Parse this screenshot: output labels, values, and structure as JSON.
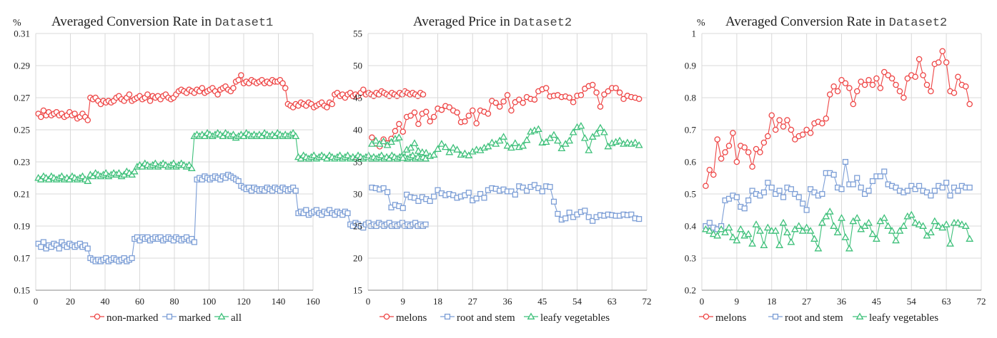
{
  "colors": {
    "red": "#ee4545",
    "blue": "#7c9ed6",
    "green": "#3ec07a"
  },
  "chart_data": [
    {
      "type": "line",
      "title_text": "Averaged Conversion Rate in ",
      "title_code": "Dataset1",
      "unit_label": "%",
      "xlim": [
        0,
        160
      ],
      "xticks": [
        "0",
        "20",
        "40",
        "60",
        "80",
        "100",
        "120",
        "140",
        "160"
      ],
      "ylim": [
        0.15,
        0.31
      ],
      "yticks": [
        "0.31",
        "0.29",
        "0.27",
        "0.25",
        "0.23",
        "0.21",
        "0.19",
        "0.17",
        "0.15"
      ],
      "grid": true,
      "legend_position": "bottom",
      "x_step": 1.5,
      "series": [
        {
          "name": "non-marked",
          "color": "red",
          "marker": "circle",
          "values": [
            0.26,
            0.258,
            0.262,
            0.259,
            0.261,
            0.259,
            0.26,
            0.261,
            0.259,
            0.26,
            0.258,
            0.259,
            0.261,
            0.259,
            0.26,
            0.257,
            0.258,
            0.26,
            0.258,
            0.256,
            0.27,
            0.269,
            0.27,
            0.268,
            0.266,
            0.268,
            0.267,
            0.268,
            0.267,
            0.268,
            0.27,
            0.271,
            0.269,
            0.268,
            0.27,
            0.272,
            0.268,
            0.269,
            0.27,
            0.271,
            0.269,
            0.27,
            0.272,
            0.268,
            0.271,
            0.27,
            0.271,
            0.269,
            0.271,
            0.272,
            0.27,
            0.269,
            0.27,
            0.272,
            0.274,
            0.275,
            0.274,
            0.273,
            0.275,
            0.274,
            0.273,
            0.275,
            0.274,
            0.276,
            0.273,
            0.274,
            0.275,
            0.276,
            0.274,
            0.272,
            0.275,
            0.276,
            0.277,
            0.275,
            0.274,
            0.276,
            0.28,
            0.281,
            0.284,
            0.279,
            0.28,
            0.279,
            0.281,
            0.28,
            0.279,
            0.28,
            0.281,
            0.279,
            0.28,
            0.279,
            0.281,
            0.28,
            0.28,
            0.281,
            0.279,
            0.276,
            0.266,
            0.265,
            0.264,
            0.266,
            0.265,
            0.267,
            0.266,
            0.265,
            0.267,
            0.266,
            0.264,
            0.265,
            0.266,
            0.267,
            0.265,
            0.264,
            0.267,
            0.266,
            0.272,
            0.273,
            0.271,
            0.272,
            0.27,
            0.272,
            0.273,
            0.271,
            0.272,
            0.271,
            0.273,
            0.275,
            0.272,
            0.273,
            0.272,
            0.271,
            0.273,
            0.272,
            0.274,
            0.273,
            0.272,
            0.271,
            0.273,
            0.272,
            0.271,
            0.273,
            0.272,
            0.274,
            0.273,
            0.272,
            0.273,
            0.272,
            0.271,
            0.273,
            0.272
          ]
        },
        {
          "name": "marked",
          "color": "blue",
          "marker": "square",
          "values": [
            0.179,
            0.177,
            0.18,
            0.176,
            0.178,
            0.177,
            0.179,
            0.178,
            0.176,
            0.18,
            0.178,
            0.177,
            0.179,
            0.178,
            0.177,
            0.178,
            0.179,
            0.177,
            0.178,
            0.176,
            0.17,
            0.169,
            0.168,
            0.169,
            0.168,
            0.169,
            0.17,
            0.168,
            0.169,
            0.17,
            0.169,
            0.168,
            0.169,
            0.17,
            0.168,
            0.169,
            0.17,
            0.182,
            0.183,
            0.181,
            0.183,
            0.182,
            0.183,
            0.181,
            0.182,
            0.183,
            0.182,
            0.183,
            0.181,
            0.182,
            0.183,
            0.182,
            0.181,
            0.183,
            0.182,
            0.181,
            0.182,
            0.183,
            0.181,
            0.182,
            0.18,
            0.219,
            0.22,
            0.219,
            0.221,
            0.22,
            0.219,
            0.22,
            0.221,
            0.22,
            0.219,
            0.221,
            0.22,
            0.222,
            0.221,
            0.22,
            0.219,
            0.218,
            0.215,
            0.214,
            0.213,
            0.214,
            0.212,
            0.214,
            0.213,
            0.212,
            0.213,
            0.212,
            0.214,
            0.213,
            0.212,
            0.214,
            0.213,
            0.212,
            0.214,
            0.213,
            0.212,
            0.213,
            0.214,
            0.212,
            0.198,
            0.199,
            0.198,
            0.2,
            0.197,
            0.198,
            0.199,
            0.2,
            0.198,
            0.197,
            0.199,
            0.198,
            0.2,
            0.198,
            0.197,
            0.199,
            0.198,
            0.197,
            0.199,
            0.198,
            0.191,
            0.19,
            0.192,
            0.191,
            0.19,
            0.189,
            0.191,
            0.192,
            0.19,
            0.191,
            0.19,
            0.192,
            0.191,
            0.19,
            0.191,
            0.192,
            0.19,
            0.191,
            0.19,
            0.191,
            0.192,
            0.19,
            0.191,
            0.19,
            0.191,
            0.192,
            0.19,
            0.191,
            0.19,
            0.191
          ]
        },
        {
          "name": "all",
          "color": "green",
          "marker": "triangle",
          "values": [
            0.22,
            0.219,
            0.221,
            0.22,
            0.219,
            0.221,
            0.22,
            0.219,
            0.22,
            0.221,
            0.219,
            0.22,
            0.219,
            0.221,
            0.22,
            0.219,
            0.22,
            0.221,
            0.219,
            0.218,
            0.222,
            0.221,
            0.223,
            0.222,
            0.221,
            0.222,
            0.223,
            0.221,
            0.222,
            0.223,
            0.222,
            0.223,
            0.221,
            0.222,
            0.224,
            0.223,
            0.222,
            0.224,
            0.227,
            0.228,
            0.227,
            0.229,
            0.228,
            0.227,
            0.228,
            0.229,
            0.227,
            0.228,
            0.229,
            0.228,
            0.227,
            0.228,
            0.229,
            0.227,
            0.228,
            0.229,
            0.228,
            0.227,
            0.228,
            0.226,
            0.246,
            0.247,
            0.246,
            0.247,
            0.246,
            0.248,
            0.247,
            0.246,
            0.247,
            0.248,
            0.247,
            0.246,
            0.248,
            0.247,
            0.246,
            0.247,
            0.245,
            0.246,
            0.247,
            0.246,
            0.248,
            0.247,
            0.246,
            0.247,
            0.246,
            0.247,
            0.246,
            0.248,
            0.247,
            0.246,
            0.247,
            0.246,
            0.248,
            0.247,
            0.246,
            0.247,
            0.246,
            0.247,
            0.248,
            0.246,
            0.233,
            0.232,
            0.234,
            0.233,
            0.232,
            0.233,
            0.234,
            0.232,
            0.233,
            0.234,
            0.233,
            0.232,
            0.234,
            0.233,
            0.232,
            0.233,
            0.234,
            0.232,
            0.233,
            0.234,
            0.232,
            0.233,
            0.232,
            0.234,
            0.233,
            0.232,
            0.233,
            0.234,
            0.232,
            0.233,
            0.232,
            0.233,
            0.234,
            0.232,
            0.233,
            0.232,
            0.234,
            0.233,
            0.232,
            0.233,
            0.234,
            0.233,
            0.232,
            0.233,
            0.234,
            0.232,
            0.233,
            0.232,
            0.233,
            0.232
          ]
        }
      ]
    },
    {
      "type": "line",
      "title_text": "Averaged Price in ",
      "title_code": "Dataset2",
      "unit_label": "",
      "xlim": [
        0,
        72
      ],
      "xticks": [
        "0",
        "9",
        "18",
        "27",
        "36",
        "45",
        "54",
        "63",
        "72"
      ],
      "ylim": [
        15,
        55
      ],
      "yticks": [
        "55",
        "50",
        "45",
        "40",
        "35",
        "30",
        "25",
        "20",
        "15"
      ],
      "grid": true,
      "legend_position": "bottom",
      "x_step": 1,
      "series": [
        {
          "name": "melons",
          "color": "red",
          "marker": "circle",
          "values": [
            38.8,
            37.9,
            37.4,
            38.5,
            37.9,
            38.6,
            39.8,
            40.9,
            39.7,
            42.0,
            42.2,
            42.7,
            40.9,
            42.5,
            42.8,
            41.3,
            42.0,
            43.3,
            43.1,
            43.7,
            43.5,
            43.0,
            42.7,
            41.2,
            41.3,
            42.2,
            43.0,
            41.0,
            43.0,
            42.8,
            42.5,
            44.5,
            44.2,
            43.6,
            44.4,
            45.4,
            43.0,
            44.3,
            44.7,
            44.2,
            45.1,
            44.8,
            44.7,
            46.0,
            46.3,
            46.5,
            45.2,
            45.3,
            45.4,
            45.1,
            45.2,
            45.0,
            44.3,
            45.3,
            45.4,
            46.4,
            46.8,
            47.0,
            45.8,
            43.6,
            45.5,
            46.0,
            46.5,
            46.5,
            45.8,
            44.8,
            45.3,
            45.1,
            45.0,
            44.8
          ]
        },
        {
          "name": "root and stem",
          "color": "blue",
          "marker": "square",
          "values": [
            31.0,
            30.9,
            30.7,
            30.9,
            30.3,
            27.9,
            28.3,
            28.1,
            27.8,
            29.9,
            29.5,
            29.4,
            28.9,
            29.5,
            29.2,
            28.9,
            29.6,
            30.6,
            30.1,
            29.8,
            30.0,
            29.8,
            29.4,
            29.6,
            29.8,
            30.2,
            29.0,
            29.3,
            30.0,
            29.4,
            30.6,
            30.9,
            30.8,
            30.5,
            30.7,
            30.4,
            30.4,
            29.9,
            31.2,
            31.0,
            30.5,
            31.1,
            31.4,
            30.9,
            30.4,
            31.2,
            31.1,
            28.8,
            26.9,
            26.0,
            26.2,
            27.1,
            26.4,
            26.8,
            27.2,
            27.4,
            26.4,
            25.8,
            26.4,
            26.7,
            26.6,
            26.8,
            26.7,
            26.6,
            26.6,
            26.8,
            26.7,
            26.8,
            26.2,
            26.1
          ]
        },
        {
          "name": "leafy vegetables",
          "color": "green",
          "marker": "triangle",
          "values": [
            37.8,
            38.3,
            37.8,
            38.2,
            37.6,
            38.1,
            38.6,
            38.8,
            35.6,
            36.9,
            37.2,
            37.9,
            36.7,
            36.5,
            36.4,
            35.9,
            36.1,
            37.0,
            37.8,
            37.3,
            36.5,
            37.2,
            36.9,
            36.1,
            36.3,
            36.0,
            36.6,
            36.9,
            36.8,
            37.2,
            37.4,
            38.0,
            37.8,
            38.3,
            38.9,
            37.5,
            37.2,
            37.9,
            37.3,
            37.5,
            38.4,
            39.7,
            39.9,
            40.1,
            38.0,
            38.1,
            38.7,
            39.2,
            38.3,
            37.1,
            37.8,
            38.3,
            39.6,
            40.4,
            40.6,
            38.7,
            36.8,
            38.9,
            39.4,
            40.3,
            39.6,
            37.4,
            37.9,
            38.1,
            38.3,
            37.8,
            38.0,
            37.8,
            38.0,
            37.6
          ]
        }
      ]
    },
    {
      "type": "line",
      "title_text": "Averaged Conversion Rate in ",
      "title_code": "Dataset2",
      "unit_label": "%",
      "xlim": [
        0,
        72
      ],
      "xticks": [
        "0",
        "9",
        "18",
        "27",
        "36",
        "45",
        "54",
        "63",
        "72"
      ],
      "ylim": [
        0.2,
        1.0
      ],
      "yticks": [
        "1",
        "0.9",
        "0.8",
        "0.7",
        "0.6",
        "0.5",
        "0.4",
        "0.3",
        "0.2"
      ],
      "grid": true,
      "legend_position": "bottom",
      "x_step": 1,
      "series": [
        {
          "name": "melons",
          "color": "red",
          "marker": "circle",
          "values": [
            0.525,
            0.575,
            0.56,
            0.67,
            0.61,
            0.63,
            0.65,
            0.69,
            0.6,
            0.65,
            0.645,
            0.63,
            0.585,
            0.64,
            0.63,
            0.66,
            0.68,
            0.745,
            0.7,
            0.73,
            0.71,
            0.73,
            0.7,
            0.67,
            0.68,
            0.685,
            0.7,
            0.69,
            0.72,
            0.725,
            0.72,
            0.735,
            0.81,
            0.835,
            0.82,
            0.855,
            0.845,
            0.83,
            0.78,
            0.82,
            0.85,
            0.84,
            0.855,
            0.84,
            0.86,
            0.83,
            0.88,
            0.87,
            0.86,
            0.84,
            0.82,
            0.8,
            0.86,
            0.87,
            0.865,
            0.92,
            0.87,
            0.84,
            0.82,
            0.905,
            0.91,
            0.945,
            0.91,
            0.82,
            0.815,
            0.865,
            0.84,
            0.835,
            0.78
          ]
        },
        {
          "name": "root and stem",
          "color": "blue",
          "marker": "square",
          "values": [
            0.4,
            0.41,
            0.395,
            0.39,
            0.4,
            0.48,
            0.485,
            0.495,
            0.49,
            0.46,
            0.455,
            0.48,
            0.51,
            0.5,
            0.495,
            0.505,
            0.535,
            0.52,
            0.5,
            0.51,
            0.49,
            0.52,
            0.515,
            0.5,
            0.49,
            0.47,
            0.45,
            0.515,
            0.505,
            0.495,
            0.5,
            0.565,
            0.565,
            0.56,
            0.52,
            0.515,
            0.6,
            0.53,
            0.53,
            0.55,
            0.52,
            0.5,
            0.51,
            0.54,
            0.555,
            0.555,
            0.57,
            0.53,
            0.525,
            0.52,
            0.51,
            0.505,
            0.51,
            0.525,
            0.515,
            0.525,
            0.51,
            0.505,
            0.495,
            0.51,
            0.525,
            0.52,
            0.535,
            0.495,
            0.52,
            0.51,
            0.525,
            0.52,
            0.52
          ]
        },
        {
          "name": "leafy vegetables",
          "color": "green",
          "marker": "triangle",
          "values": [
            0.39,
            0.385,
            0.375,
            0.37,
            0.39,
            0.38,
            0.395,
            0.365,
            0.355,
            0.39,
            0.37,
            0.375,
            0.345,
            0.405,
            0.385,
            0.34,
            0.395,
            0.385,
            0.385,
            0.34,
            0.41,
            0.38,
            0.35,
            0.39,
            0.4,
            0.385,
            0.395,
            0.385,
            0.36,
            0.33,
            0.41,
            0.43,
            0.445,
            0.4,
            0.38,
            0.425,
            0.365,
            0.33,
            0.415,
            0.425,
            0.39,
            0.4,
            0.41,
            0.375,
            0.36,
            0.415,
            0.425,
            0.4,
            0.385,
            0.355,
            0.385,
            0.4,
            0.43,
            0.435,
            0.41,
            0.405,
            0.4,
            0.37,
            0.38,
            0.415,
            0.4,
            0.395,
            0.405,
            0.345,
            0.41,
            0.41,
            0.405,
            0.4,
            0.36
          ]
        }
      ]
    }
  ]
}
